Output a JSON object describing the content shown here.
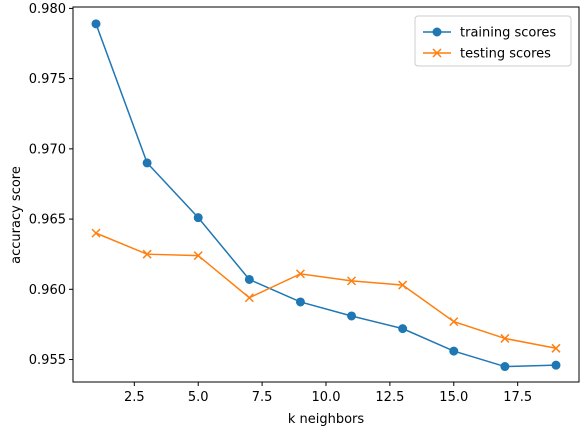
{
  "chart_data": {
    "type": "line",
    "title": "",
    "xlabel": "k neighbors",
    "ylabel": "accuracy score",
    "xlim": [
      0.1,
      19.9
    ],
    "ylim": [
      0.9534,
      0.9801
    ],
    "xticks": [
      2.5,
      5.0,
      7.5,
      10.0,
      12.5,
      15.0,
      17.5
    ],
    "xtick_labels": [
      "2.5",
      "5.0",
      "7.5",
      "10.0",
      "12.5",
      "15.0",
      "17.5"
    ],
    "yticks": [
      0.955,
      0.96,
      0.965,
      0.97,
      0.975,
      0.98
    ],
    "ytick_labels": [
      "0.955",
      "0.960",
      "0.965",
      "0.970",
      "0.975",
      "0.980"
    ],
    "grid": false,
    "legend_position": "top-right",
    "x": [
      1,
      3,
      5,
      7,
      9,
      11,
      13,
      15,
      17,
      19
    ],
    "series": [
      {
        "name": "training scores",
        "marker": "circle",
        "color": "#1f77b4",
        "values": [
          0.9789,
          0.969,
          0.9651,
          0.9607,
          0.9591,
          0.9581,
          0.9572,
          0.9556,
          0.9545,
          0.9546
        ]
      },
      {
        "name": "testing scores",
        "marker": "x",
        "color": "#ff7f0e",
        "values": [
          0.964,
          0.9625,
          0.9624,
          0.9594,
          0.9611,
          0.9606,
          0.9603,
          0.9577,
          0.9565,
          0.9558
        ]
      }
    ]
  }
}
